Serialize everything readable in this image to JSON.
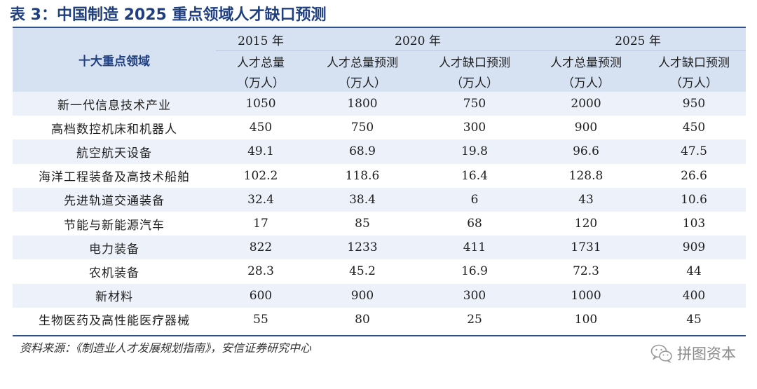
{
  "title": "表 3：中国制造 2025 重点领域人才缺口预测",
  "header": {
    "row_label": "十大重点领域",
    "years": [
      "2015 年",
      "2020 年",
      "2025 年"
    ],
    "metrics": [
      "人才总量",
      "人才总量预测",
      "人才缺口预测",
      "人才总量预测",
      "人才缺口预测"
    ],
    "unit": "（万人）"
  },
  "rows": [
    {
      "name": "新一代信息技术产业",
      "v": [
        "1050",
        "1800",
        "750",
        "2000",
        "950"
      ]
    },
    {
      "name": "高档数控机床和机器人",
      "v": [
        "450",
        "750",
        "300",
        "900",
        "450"
      ]
    },
    {
      "name": "航空航天设备",
      "v": [
        "49.1",
        "68.9",
        "19.8",
        "96.6",
        "47.5"
      ]
    },
    {
      "name": "海洋工程装备及高技术船舶",
      "v": [
        "102.2",
        "118.6",
        "16.4",
        "128.8",
        "26.6"
      ]
    },
    {
      "name": "先进轨道交通装备",
      "v": [
        "32.4",
        "38.4",
        "6",
        "43",
        "10.6"
      ]
    },
    {
      "name": "节能与新能源汽车",
      "v": [
        "17",
        "85",
        "68",
        "120",
        "103"
      ]
    },
    {
      "name": "电力装备",
      "v": [
        "822",
        "1233",
        "411",
        "1731",
        "909"
      ]
    },
    {
      "name": "农机装备",
      "v": [
        "28.3",
        "45.2",
        "16.9",
        "72.3",
        "44"
      ]
    },
    {
      "name": "新材料",
      "v": [
        "600",
        "900",
        "300",
        "1000",
        "400"
      ]
    },
    {
      "name": "生物医药及高性能医疗器械",
      "v": [
        "55",
        "80",
        "25",
        "100",
        "45"
      ]
    }
  ],
  "source": "资料来源：《制造业人才发展规划指南》，安信证券研究中心",
  "watermark": "拼图资本",
  "colors": {
    "title": "#1f3f7f",
    "header_bg": "#d6e1f2",
    "row_alt_bg": "#edf2fa",
    "rule": "#2f4f8f"
  }
}
